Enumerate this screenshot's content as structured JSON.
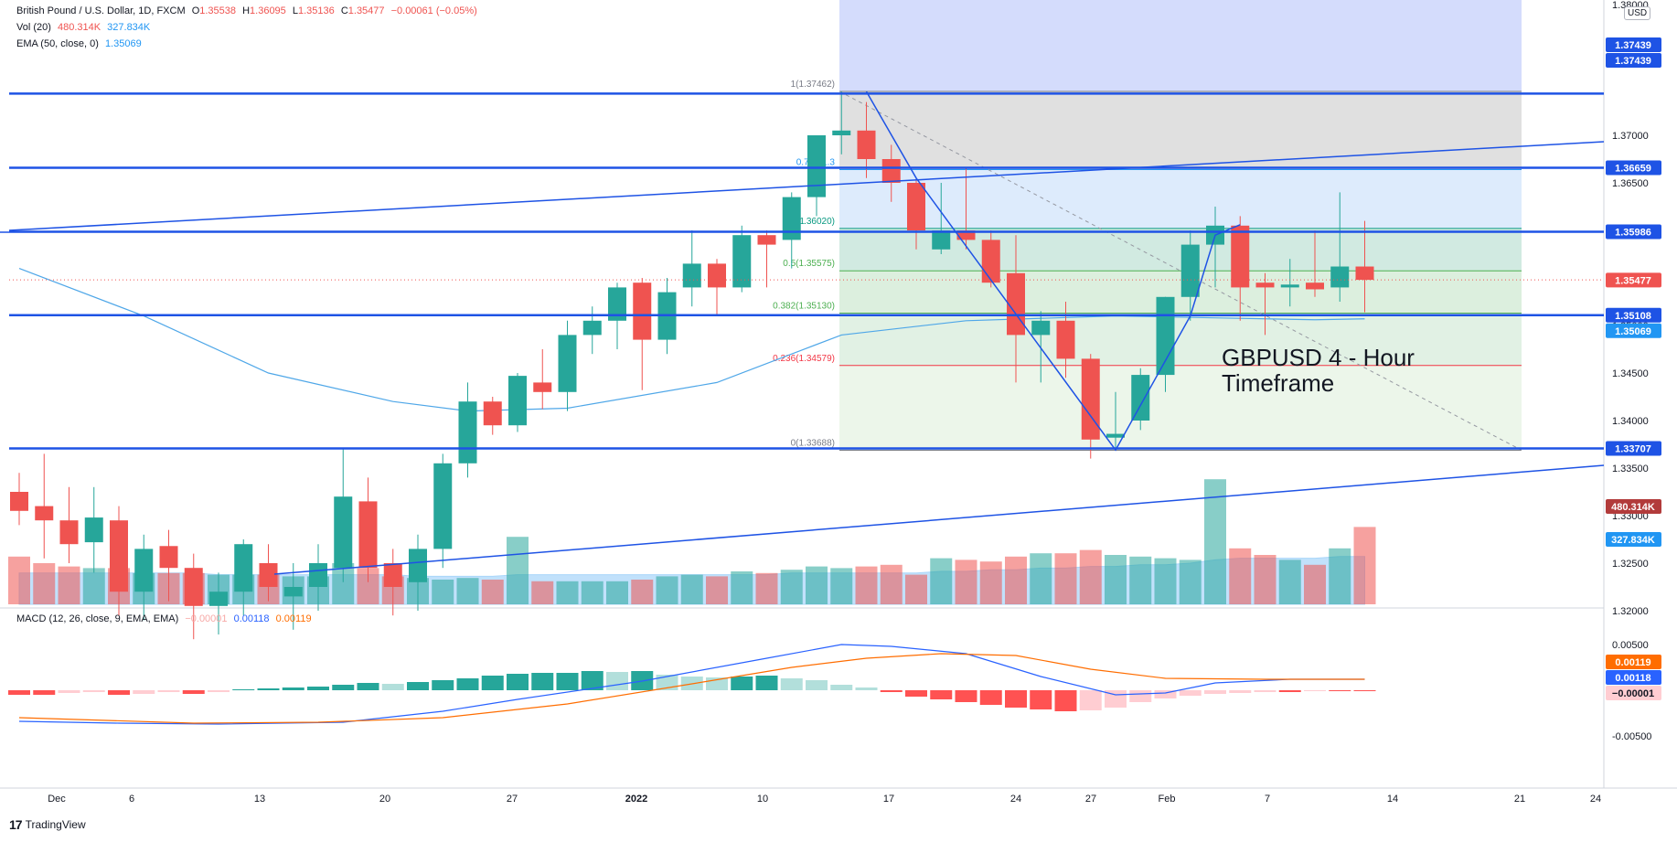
{
  "legend": {
    "symbol": "British Pound / U.S. Dollar, 1D, FXCM",
    "open_label": "O",
    "open": "1.35538",
    "high_label": "H",
    "high": "1.36095",
    "low_label": "L",
    "low": "1.35136",
    "close_label": "C",
    "close": "1.35477",
    "change": "−0.00061 (−0.05%)",
    "vol_label": "Vol (20)",
    "vol_value": "480.314K",
    "vol_ma": "327.834K",
    "ema_label": "EMA (50, close, 0)",
    "ema_value": "1.35069",
    "macd_label": "MACD (12, 26, close, 9, EMA, EMA)",
    "macd_hist": "−0.00001",
    "macd_line": "0.00118",
    "macd_signal": "0.00119"
  },
  "annotation": {
    "line1": "GBPUSD 4 - Hour",
    "line2": "Timeframe"
  },
  "brand": "TradingView",
  "currency_button": "USD",
  "colors": {
    "up": "#26a69a",
    "down": "#ef5350",
    "level_line": "#1e53e5",
    "ema": "#4fa7e8",
    "macd": "#2962ff",
    "signal": "#ff6d00",
    "vol_ma_fill": "#90caf9"
  },
  "chart_data": {
    "type": "candlestick",
    "title": "British Pound / U.S. Dollar, 1D, FXCM",
    "x_ticks": [
      "Dec",
      "6",
      "13",
      "20",
      "27",
      "2022",
      "10",
      "17",
      "24",
      "27",
      "Feb",
      "7",
      "14",
      "21",
      "24"
    ],
    "price_axis_ticks": [
      "1.37000",
      "1.36500",
      "1.36000",
      "1.35500",
      "1.35000",
      "1.34500",
      "1.34000",
      "1.33500",
      "1.33000",
      "1.32500",
      "1.32000"
    ],
    "price_axis_partial_top": "1.38000",
    "ohlc": [
      [
        1.3325,
        1.3345,
        1.329,
        1.3305
      ],
      [
        1.331,
        1.3365,
        1.3255,
        1.3295
      ],
      [
        1.3295,
        1.333,
        1.325,
        1.327
      ],
      [
        1.3272,
        1.333,
        1.324,
        1.3298
      ],
      [
        1.3295,
        1.331,
        1.3195,
        1.322
      ],
      [
        1.322,
        1.328,
        1.319,
        1.3265
      ],
      [
        1.3268,
        1.3285,
        1.321,
        1.3245
      ],
      [
        1.3245,
        1.326,
        1.317,
        1.3205
      ],
      [
        1.3205,
        1.324,
        1.3175,
        1.322
      ],
      [
        1.322,
        1.3275,
        1.3195,
        1.327
      ],
      [
        1.325,
        1.327,
        1.321,
        1.3225
      ],
      [
        1.3215,
        1.325,
        1.318,
        1.3225
      ],
      [
        1.3225,
        1.327,
        1.32,
        1.325
      ],
      [
        1.3245,
        1.337,
        1.323,
        1.332
      ],
      [
        1.3315,
        1.334,
        1.323,
        1.3245
      ],
      [
        1.325,
        1.3265,
        1.3195,
        1.3225
      ],
      [
        1.323,
        1.328,
        1.32,
        1.3265
      ],
      [
        1.3265,
        1.3365,
        1.3245,
        1.3355
      ],
      [
        1.3355,
        1.344,
        1.334,
        1.342
      ],
      [
        1.342,
        1.3425,
        1.3385,
        1.3395
      ],
      [
        1.3395,
        1.345,
        1.3388,
        1.3447
      ],
      [
        1.344,
        1.3475,
        1.3412,
        1.343
      ],
      [
        1.343,
        1.3505,
        1.341,
        1.349
      ],
      [
        1.349,
        1.352,
        1.347,
        1.3505
      ],
      [
        1.3505,
        1.3545,
        1.3475,
        1.354
      ],
      [
        1.3545,
        1.355,
        1.3432,
        1.3485
      ],
      [
        1.3485,
        1.355,
        1.347,
        1.3535
      ],
      [
        1.354,
        1.36,
        1.352,
        1.3565
      ],
      [
        1.3565,
        1.357,
        1.351,
        1.354
      ],
      [
        1.354,
        1.3605,
        1.3535,
        1.3595
      ],
      [
        1.3595,
        1.36,
        1.354,
        1.3585
      ],
      [
        1.359,
        1.364,
        1.356,
        1.3635
      ],
      [
        1.3635,
        1.37,
        1.3615,
        1.37
      ],
      [
        1.37,
        1.3746,
        1.368,
        1.3705
      ],
      [
        1.3705,
        1.3735,
        1.3655,
        1.3675
      ],
      [
        1.3675,
        1.369,
        1.363,
        1.365
      ],
      [
        1.365,
        1.3655,
        1.358,
        1.36
      ],
      [
        1.358,
        1.365,
        1.3575,
        1.36
      ],
      [
        1.36,
        1.3665,
        1.358,
        1.359
      ],
      [
        1.359,
        1.36,
        1.354,
        1.3545
      ],
      [
        1.3555,
        1.3595,
        1.344,
        1.349
      ],
      [
        1.349,
        1.3515,
        1.344,
        1.3505
      ],
      [
        1.3505,
        1.3525,
        1.3445,
        1.3465
      ],
      [
        1.3465,
        1.347,
        1.336,
        1.338
      ],
      [
        1.3382,
        1.343,
        1.337,
        1.3386
      ],
      [
        1.34,
        1.3455,
        1.339,
        1.3448
      ],
      [
        1.3448,
        1.353,
        1.343,
        1.353
      ],
      [
        1.353,
        1.36,
        1.3505,
        1.3585
      ],
      [
        1.3585,
        1.3625,
        1.354,
        1.3605
      ],
      [
        1.3605,
        1.3615,
        1.3505,
        1.354
      ],
      [
        1.3545,
        1.3555,
        1.349,
        1.354
      ],
      [
        1.354,
        1.357,
        1.352,
        1.3543
      ],
      [
        1.3545,
        1.36,
        1.353,
        1.3538
      ],
      [
        1.354,
        1.364,
        1.3525,
        1.3562
      ],
      [
        1.3562,
        1.361,
        1.3514,
        1.3548
      ]
    ],
    "volume": [
      0.29,
      0.25,
      0.23,
      0.22,
      0.22,
      0.19,
      0.19,
      0.19,
      0.18,
      0.18,
      0.18,
      0.17,
      0.17,
      0.25,
      0.22,
      0.17,
      0.16,
      0.15,
      0.16,
      0.15,
      0.41,
      0.14,
      0.14,
      0.14,
      0.14,
      0.15,
      0.17,
      0.18,
      0.17,
      0.2,
      0.19,
      0.21,
      0.23,
      0.22,
      0.23,
      0.24,
      0.18,
      0.28,
      0.27,
      0.26,
      0.29,
      0.31,
      0.31,
      0.33,
      0.3,
      0.29,
      0.28,
      0.27,
      0.76,
      0.34,
      0.3,
      0.27,
      0.24,
      0.34,
      0.47
    ],
    "volume_ma": [
      0.19,
      0.19,
      0.19,
      0.19,
      0.19,
      0.19,
      0.19,
      0.19,
      0.18,
      0.18,
      0.18,
      0.18,
      0.18,
      0.18,
      0.18,
      0.18,
      0.17,
      0.17,
      0.17,
      0.17,
      0.18,
      0.18,
      0.18,
      0.18,
      0.18,
      0.18,
      0.18,
      0.18,
      0.18,
      0.18,
      0.18,
      0.19,
      0.19,
      0.19,
      0.19,
      0.19,
      0.19,
      0.2,
      0.2,
      0.21,
      0.21,
      0.22,
      0.22,
      0.23,
      0.23,
      0.24,
      0.24,
      0.25,
      0.27,
      0.28,
      0.28,
      0.28,
      0.28,
      0.29,
      0.29
    ],
    "ema_50": [
      [
        0,
        1.356
      ],
      [
        5,
        1.351
      ],
      [
        10,
        1.345
      ],
      [
        15,
        1.342
      ],
      [
        18,
        1.341
      ],
      [
        22,
        1.3413
      ],
      [
        28,
        1.344
      ],
      [
        33,
        1.349
      ],
      [
        38,
        1.3505
      ],
      [
        44,
        1.351
      ],
      [
        48,
        1.3508
      ],
      [
        52,
        1.3506
      ],
      [
        54,
        1.3507
      ]
    ],
    "macd_line": [
      [
        0,
        -0.0034
      ],
      [
        4,
        -0.0036
      ],
      [
        8,
        -0.0037
      ],
      [
        13,
        -0.0035
      ],
      [
        17,
        -0.0023
      ],
      [
        20,
        -0.001
      ],
      [
        25,
        0.001
      ],
      [
        30,
        0.0035
      ],
      [
        33,
        0.005
      ],
      [
        35,
        0.0048
      ],
      [
        38,
        0.004
      ],
      [
        41,
        0.0015
      ],
      [
        44,
        -0.0005
      ],
      [
        46,
        -0.0003
      ],
      [
        48,
        0.0008
      ],
      [
        51,
        0.0012
      ],
      [
        54,
        0.0012
      ]
    ],
    "signal_line": [
      [
        0,
        -0.003
      ],
      [
        7,
        -0.0036
      ],
      [
        12,
        -0.0035
      ],
      [
        17,
        -0.003
      ],
      [
        22,
        -0.0015
      ],
      [
        27,
        0.0007
      ],
      [
        31,
        0.0025
      ],
      [
        34,
        0.0035
      ],
      [
        37,
        0.004
      ],
      [
        40,
        0.0038
      ],
      [
        43,
        0.0023
      ],
      [
        46,
        0.0013
      ],
      [
        50,
        0.0012
      ],
      [
        54,
        0.0012
      ]
    ],
    "macd_hist": [
      -0.0005,
      -0.0005,
      -0.0003,
      -0.0002,
      -0.0005,
      -0.0004,
      -0.0002,
      -0.0004,
      -0.0002,
      0.0001,
      0.0002,
      0.0003,
      0.0004,
      0.0006,
      0.0008,
      0.0007,
      0.0009,
      0.0011,
      0.0013,
      0.0016,
      0.0018,
      0.0019,
      0.0019,
      0.0021,
      0.002,
      0.0021,
      0.0017,
      0.0015,
      0.0014,
      0.0015,
      0.0016,
      0.0013,
      0.0011,
      0.0006,
      0.0003,
      -0.0002,
      -0.0007,
      -0.001,
      -0.0013,
      -0.0016,
      -0.0019,
      -0.0021,
      -0.0023,
      -0.0022,
      -0.0019,
      -0.0013,
      -0.0009,
      -0.0006,
      -0.0004,
      -0.0003,
      -0.0002,
      -0.0002,
      -0.0001,
      -0.0001,
      -0.0001
    ],
    "macd_axis_ticks": [
      "0.00500",
      "-0.00500"
    ],
    "horizontal_levels": [
      1.37439,
      1.36659,
      1.35986,
      1.35108,
      1.33707
    ],
    "level_labels": [
      "1.37439",
      "1.37439",
      "1.36659",
      "1.35986",
      "1.35477",
      "1.35108",
      "1.35069",
      "1.33707"
    ],
    "volume_labels": [
      "480.314K",
      "327.834K"
    ],
    "macd_labels": [
      "0.00119",
      "0.00118",
      "−0.00001"
    ],
    "fib_levels": [
      {
        "ratio": "1",
        "price": "1.37462",
        "value": 1.37462
      },
      {
        "ratio": "0.786",
        "price": "1.36",
        "value": 1.3664
      },
      {
        "ratio": "0.618",
        "price": "1.36020",
        "value": 1.3602
      },
      {
        "ratio": "0.5",
        "price": "1.35575",
        "value": 1.35575
      },
      {
        "ratio": "0.382",
        "price": "1.35130",
        "value": 1.3513
      },
      {
        "ratio": "0.236",
        "price": "1.34579",
        "value": 1.34579
      },
      {
        "ratio": "0",
        "price": "1.33688",
        "value": 1.33688
      }
    ],
    "fib_labels": [
      "1(1.37462)",
      "0.786(1.3",
      "0.61",
      ".36020)",
      "0.5(1.35575)",
      "0.382(1.35130)",
      "0.236(1.34579)",
      "0(1.33688)"
    ]
  }
}
